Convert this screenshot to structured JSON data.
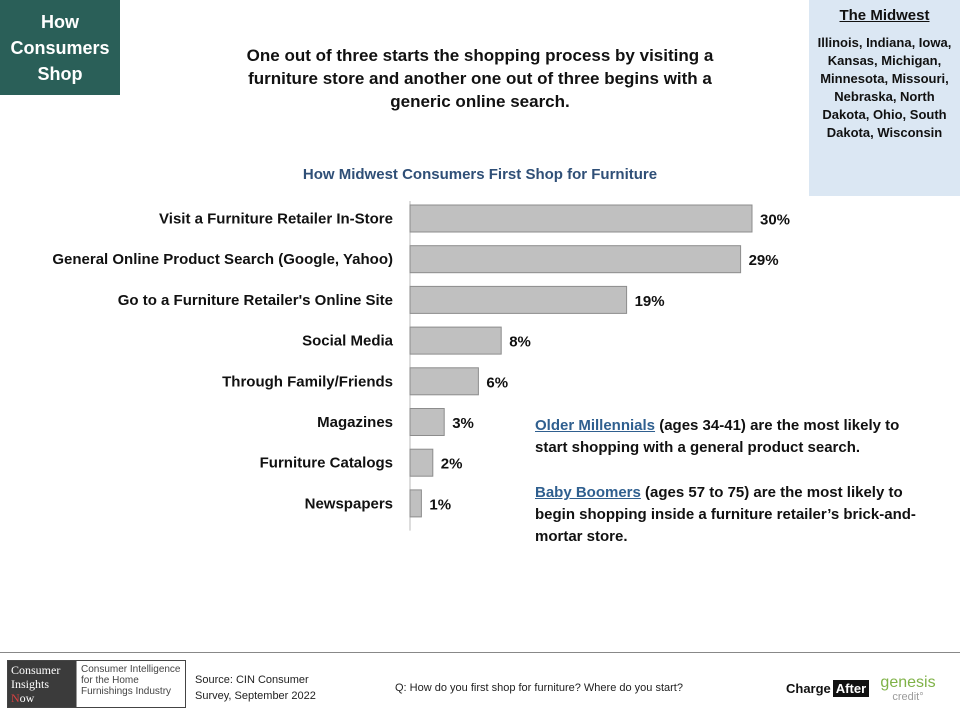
{
  "tag": {
    "line1": "How",
    "line2": "Consumers",
    "line3": "Shop"
  },
  "headline": "One out of three starts the shopping process by visiting a furniture store and another one out of three begins with a generic online search.",
  "region": {
    "title": "The Midwest",
    "states": "Illinois, Indiana, Iowa, Kansas, Michigan, Minnesota, Missouri, Nebraska, North Dakota, Ohio, South Dakota, Wisconsin"
  },
  "chart_data": {
    "type": "bar",
    "orientation": "horizontal",
    "title": "How Midwest Consumers First Shop for Furniture",
    "categories": [
      "Visit a Furniture Retailer In-Store",
      "General Online Product Search (Google, Yahoo)",
      "Go to a Furniture Retailer's Online Site",
      "Social Media",
      "Through Family/Friends",
      "Magazines",
      "Furniture Catalogs",
      "Newspapers"
    ],
    "values": [
      30,
      29,
      19,
      8,
      6,
      3,
      2,
      1
    ],
    "labels": [
      "30%",
      "29%",
      "19%",
      "8%",
      "6%",
      "3%",
      "2%",
      "1%"
    ],
    "bar_color": "#c0c0c0",
    "grid": false
  },
  "notes": {
    "note1_highlight": "Older Millennials",
    "note1_text": " (ages 34-41) are the most likely to start shopping with a general product search.",
    "note2_highlight": "Baby Boomers",
    "note2_text": " (ages 57 to 75) are the most likely to begin shopping inside a furniture retailer’s brick-and-mortar store."
  },
  "footer": {
    "cin_logo": {
      "line1": "Consumer",
      "line2": "Insights",
      "line3_first": "N",
      "line3_rest": "ow",
      "tagline": "Consumer Intelligence for the Home Furnishings Industry"
    },
    "source": "Source: CIN Consumer Survey, September  2022",
    "question": "Q: How do you first shop for furniture? Where do you start?",
    "chargeafter_1": "Charge",
    "chargeafter_2": "After",
    "genesis": "genesis",
    "genesis_credit": "credit°"
  },
  "colors": {
    "tag_bg": "#2a5f58",
    "region_bg": "#dbe7f3",
    "chart_title": "#2f4f77",
    "highlight": "#2f5f8f"
  }
}
